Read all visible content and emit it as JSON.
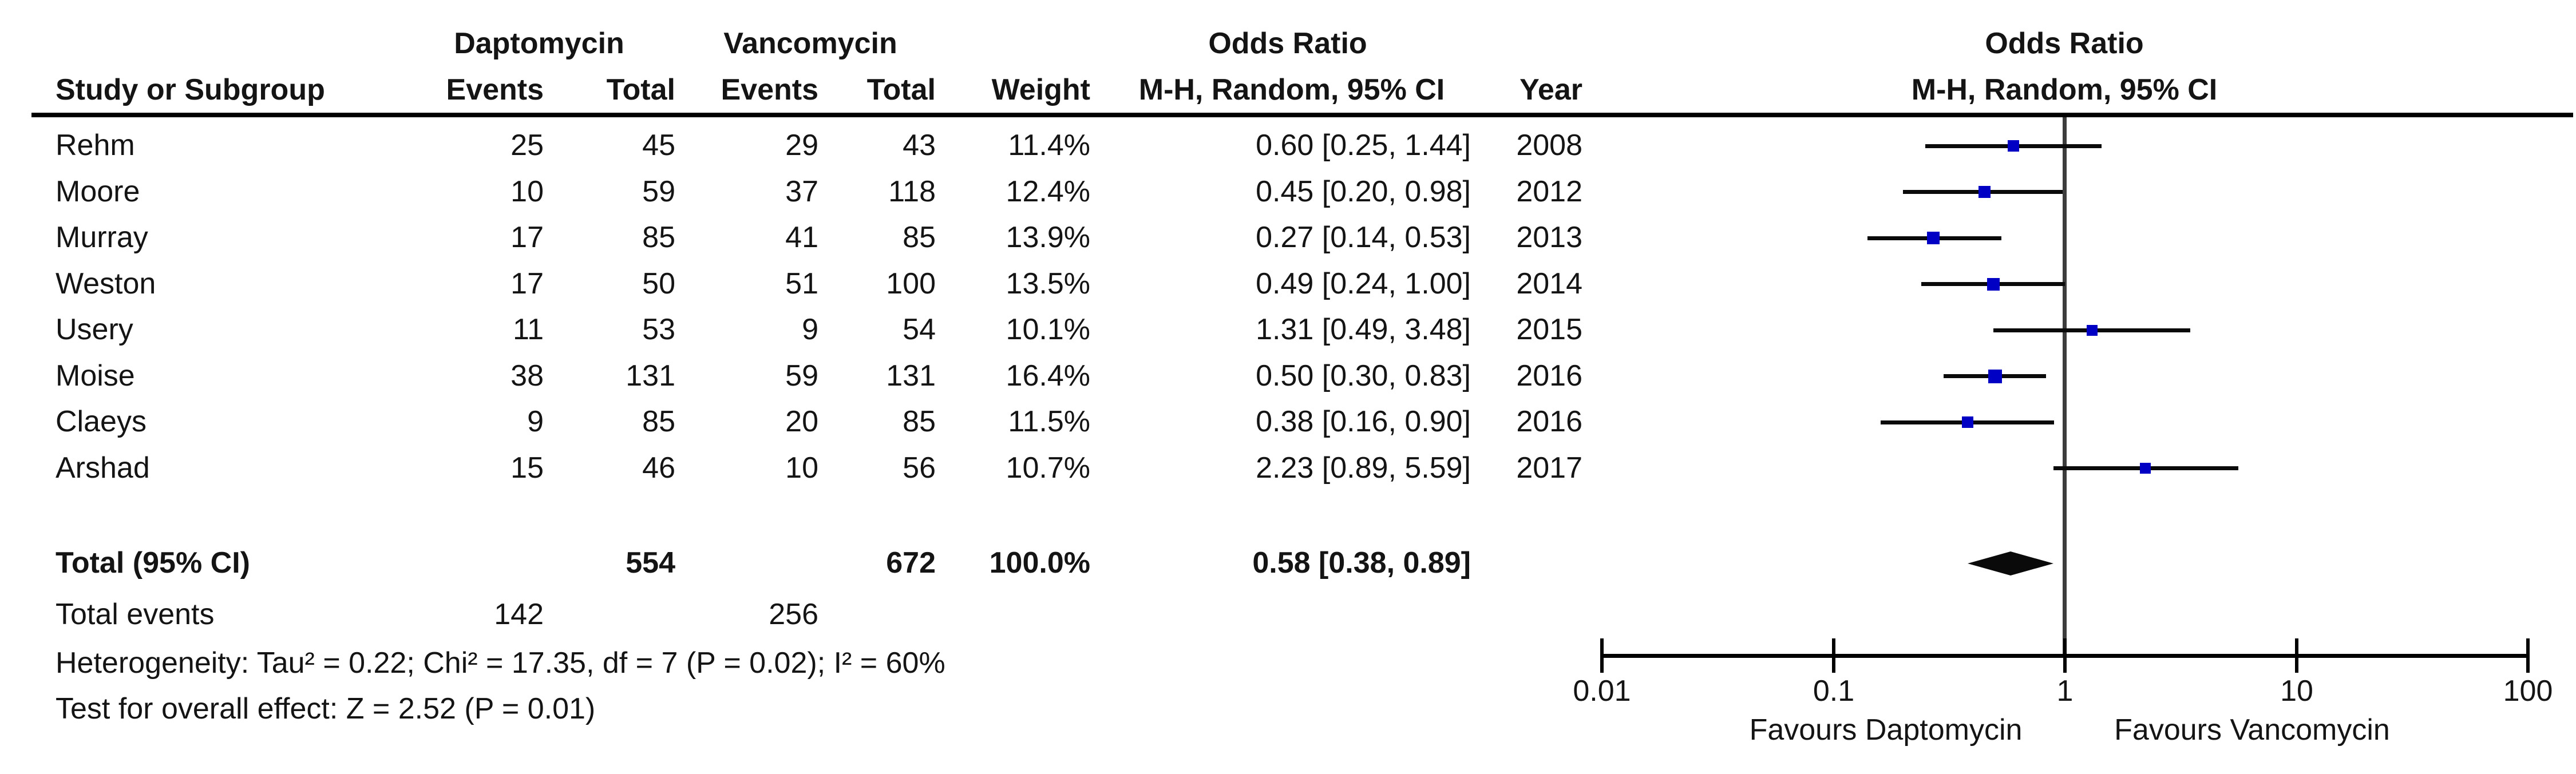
{
  "header": {
    "group_daptomycin": "Daptomycin",
    "group_vancomycin": "Vancomycin",
    "group_odds_ratio_left": "Odds Ratio",
    "group_odds_ratio_right": "Odds Ratio",
    "study": "Study or Subgroup",
    "events_dapto": "Events",
    "total_dapto": "Total",
    "events_vanco": "Events",
    "total_vanco": "Total",
    "weight": "Weight",
    "mh_ci_left": "M-H, Random, 95% CI",
    "year": "Year",
    "mh_ci_right": "M-H, Random, 95% CI"
  },
  "table": {
    "studies": [
      {
        "name": "Rehm",
        "d_events": "25",
        "d_total": "45",
        "v_events": "29",
        "v_total": "43",
        "weight": "11.4%",
        "ci_text": "0.60 [0.25, 1.44]",
        "year": "2008"
      },
      {
        "name": "Moore",
        "d_events": "10",
        "d_total": "59",
        "v_events": "37",
        "v_total": "118",
        "weight": "12.4%",
        "ci_text": "0.45 [0.20, 0.98]",
        "year": "2012"
      },
      {
        "name": "Murray",
        "d_events": "17",
        "d_total": "85",
        "v_events": "41",
        "v_total": "85",
        "weight": "13.9%",
        "ci_text": "0.27 [0.14, 0.53]",
        "year": "2013"
      },
      {
        "name": "Weston",
        "d_events": "17",
        "d_total": "50",
        "v_events": "51",
        "v_total": "100",
        "weight": "13.5%",
        "ci_text": "0.49 [0.24, 1.00]",
        "year": "2014"
      },
      {
        "name": "Usery",
        "d_events": "11",
        "d_total": "53",
        "v_events": "9",
        "v_total": "54",
        "weight": "10.1%",
        "ci_text": "1.31 [0.49, 3.48]",
        "year": "2015"
      },
      {
        "name": "Moise",
        "d_events": "38",
        "d_total": "131",
        "v_events": "59",
        "v_total": "131",
        "weight": "16.4%",
        "ci_text": "0.50 [0.30, 0.83]",
        "year": "2016"
      },
      {
        "name": "Claeys",
        "d_events": "9",
        "d_total": "85",
        "v_events": "20",
        "v_total": "85",
        "weight": "11.5%",
        "ci_text": "0.38 [0.16, 0.90]",
        "year": "2016"
      },
      {
        "name": "Arshad",
        "d_events": "15",
        "d_total": "46",
        "v_events": "10",
        "v_total": "56",
        "weight": "10.7%",
        "ci_text": "2.23 [0.89, 5.59]",
        "year": "2017"
      }
    ],
    "total_row": {
      "label": "Total (95% CI)",
      "d_total": "554",
      "v_total": "672",
      "weight": "100.0%",
      "ci_text": "0.58 [0.38, 0.89]"
    },
    "total_events": {
      "label": "Total events",
      "d": "142",
      "v": "256"
    },
    "heterogeneity": "Heterogeneity: Tau² = 0.22; Chi² = 17.35, df = 7 (P = 0.02); I² = 60%",
    "overall_effect": "Test for overall effect: Z = 2.52 (P = 0.01)"
  },
  "axis": {
    "tick_labels": [
      "0.01",
      "0.1",
      "1",
      "10",
      "100"
    ],
    "favours_left": "Favours Daptomycin",
    "favours_right": "Favours Vancomycin"
  },
  "colors": {
    "marker_blue": "#0000c4",
    "diamond_black": "#0a0a0a",
    "ci_line": "#0a0a0a",
    "guide_line": "#3c3c3c",
    "axis_line": "#000000",
    "text": "#141414"
  },
  "chart_data": {
    "type": "scatter",
    "subtype": "forest-plot",
    "title": "Odds Ratio  M-H, Random, 95% CI",
    "x_scale": "log10",
    "xlim": [
      0.01,
      100
    ],
    "x_ticks": [
      0.01,
      0.1,
      1,
      10,
      100
    ],
    "null_line": 1,
    "studies": [
      {
        "study": "Rehm",
        "year": 2008,
        "or": 0.6,
        "ci": [
          0.25,
          1.44
        ],
        "weight_pct": 11.4
      },
      {
        "study": "Moore",
        "year": 2012,
        "or": 0.45,
        "ci": [
          0.2,
          0.98
        ],
        "weight_pct": 12.4
      },
      {
        "study": "Murray",
        "year": 2013,
        "or": 0.27,
        "ci": [
          0.14,
          0.53
        ],
        "weight_pct": 13.9
      },
      {
        "study": "Weston",
        "year": 2014,
        "or": 0.49,
        "ci": [
          0.24,
          1.0
        ],
        "weight_pct": 13.5
      },
      {
        "study": "Usery",
        "year": 2015,
        "or": 1.31,
        "ci": [
          0.49,
          3.48
        ],
        "weight_pct": 10.1
      },
      {
        "study": "Moise",
        "year": 2016,
        "or": 0.5,
        "ci": [
          0.3,
          0.83
        ],
        "weight_pct": 16.4
      },
      {
        "study": "Claeys",
        "year": 2016,
        "or": 0.38,
        "ci": [
          0.16,
          0.9
        ],
        "weight_pct": 11.5
      },
      {
        "study": "Arshad",
        "year": 2017,
        "or": 2.23,
        "ci": [
          0.89,
          5.59
        ],
        "weight_pct": 10.7
      }
    ],
    "total": {
      "label": "Total (95% CI)",
      "or": 0.58,
      "ci": [
        0.38,
        0.89
      ],
      "weight_pct": 100.0,
      "daptomycin_total": 554,
      "vancomycin_total": 672,
      "daptomycin_events": 142,
      "vancomycin_events": 256
    },
    "heterogeneity": {
      "tau2": 0.22,
      "chi2": 17.35,
      "df": 7,
      "p": 0.02,
      "i2_pct": 60
    },
    "overall_effect": {
      "z": 2.52,
      "p": 0.01
    },
    "xlabel_left": "Favours Daptomycin",
    "xlabel_right": "Favours Vancomycin",
    "legend_position": "none",
    "grid": false
  }
}
